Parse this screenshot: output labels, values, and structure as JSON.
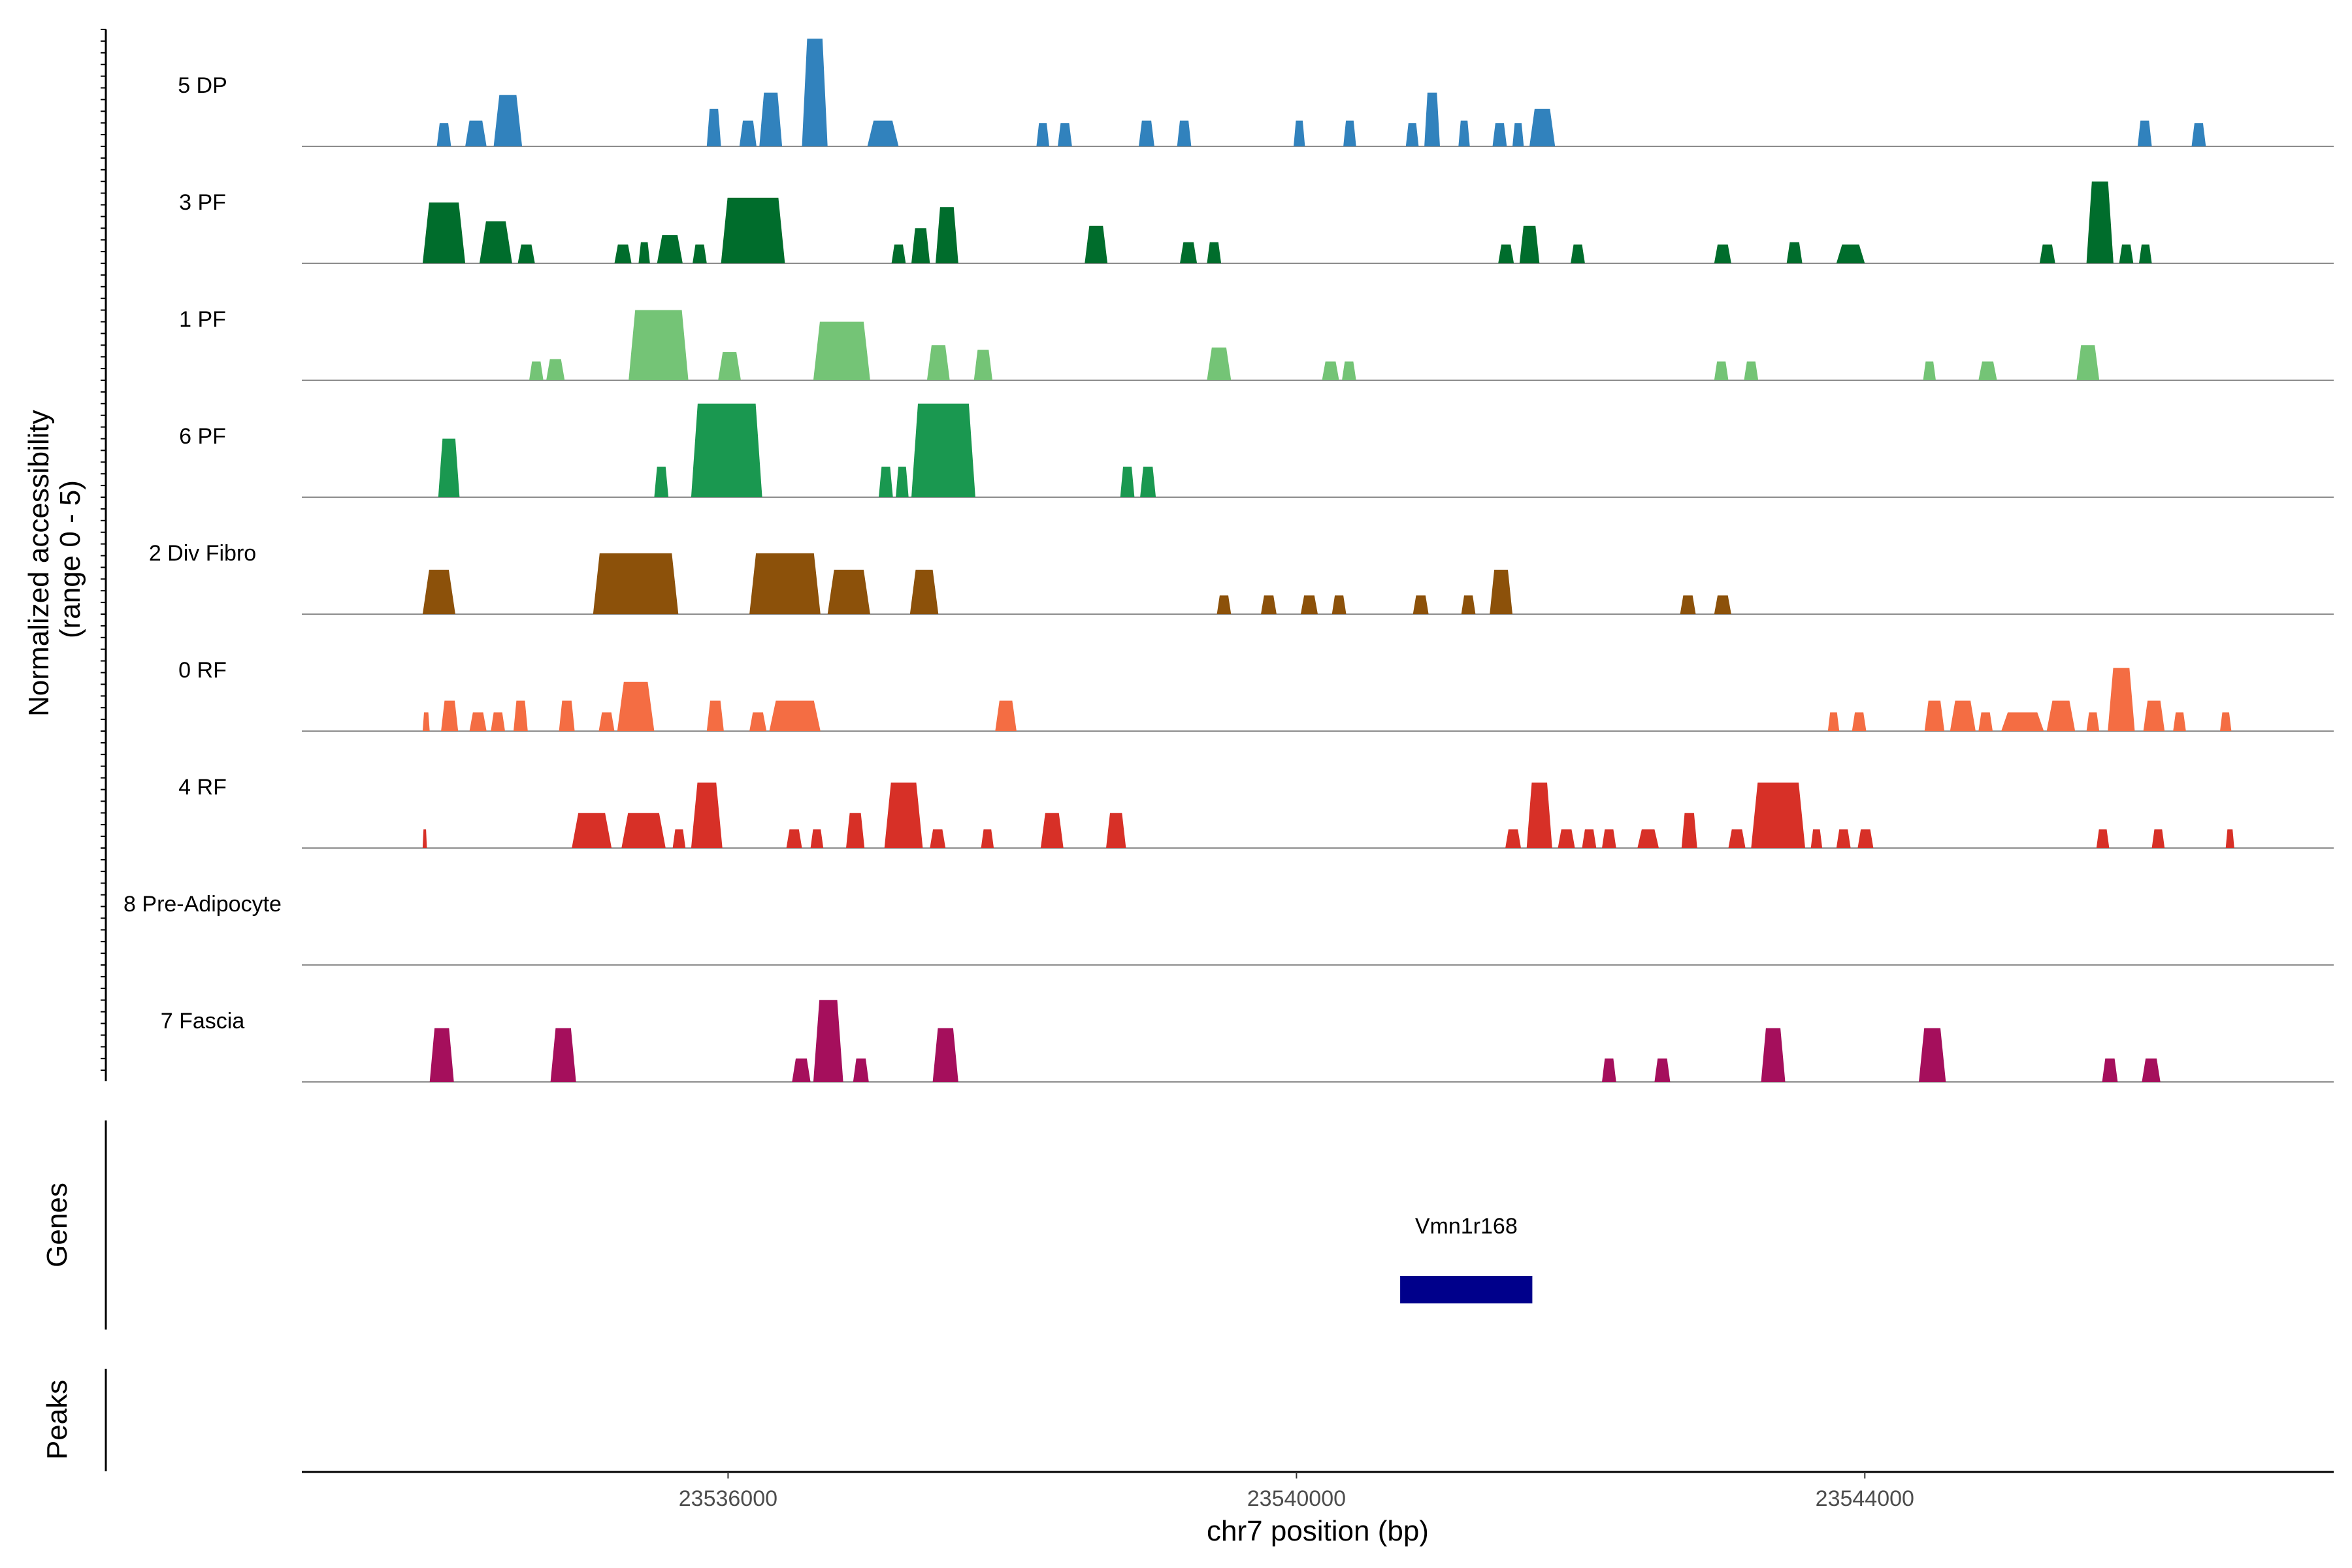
{
  "chart_data": {
    "type": "area",
    "title": "",
    "region": "chr7",
    "xlabel": "chr7 position (bp)",
    "ylabel_line1": "Normalized accessibility",
    "ylabel_line2": "(range 0 - 5)",
    "xlim": [
      23533000,
      23547300
    ],
    "ylim": [
      0,
      5
    ],
    "x_ticks": [
      {
        "value": 23536000,
        "label": "23536000"
      },
      {
        "value": 23540000,
        "label": "23540000"
      },
      {
        "value": 23544000,
        "label": "23544000"
      }
    ],
    "panel_labels": {
      "genes": "Genes",
      "peaks": "Peaks"
    },
    "genes": [
      {
        "name": "Vmn1r168",
        "start": 23540730,
        "end": 23541660,
        "color": "#00008b"
      }
    ],
    "series": [
      {
        "name": "5 DP",
        "color": "#3182bd",
        "peaks": [
          [
            23533950,
            23534050,
            1.0
          ],
          [
            23534150,
            23534300,
            1.1
          ],
          [
            23534350,
            23534550,
            2.2
          ],
          [
            23535850,
            23535950,
            1.6
          ],
          [
            23536080,
            23536200,
            1.1
          ],
          [
            23536220,
            23536380,
            2.3
          ],
          [
            23536520,
            23536700,
            4.6
          ],
          [
            23536980,
            23537200,
            1.1
          ],
          [
            23538170,
            23538260,
            1.0
          ],
          [
            23538320,
            23538420,
            1.0
          ],
          [
            23538890,
            23539000,
            1.1
          ],
          [
            23539160,
            23539260,
            1.1
          ],
          [
            23539980,
            23540060,
            1.1
          ],
          [
            23540330,
            23540420,
            1.1
          ],
          [
            23540770,
            23540860,
            1.0
          ],
          [
            23540900,
            23541010,
            2.3
          ],
          [
            23541140,
            23541220,
            1.1
          ],
          [
            23541380,
            23541480,
            1.0
          ],
          [
            23541520,
            23541600,
            1.0
          ],
          [
            23541640,
            23541820,
            1.6
          ],
          [
            23545920,
            23546020,
            1.1
          ],
          [
            23546300,
            23546400,
            1.0
          ]
        ]
      },
      {
        "name": "3 PF",
        "color": "#006d2c",
        "peaks": [
          [
            23533850,
            23534150,
            2.6
          ],
          [
            23534250,
            23534480,
            1.8
          ],
          [
            23534520,
            23534640,
            0.8
          ],
          [
            23535200,
            23535320,
            0.8
          ],
          [
            23535370,
            23535450,
            0.9
          ],
          [
            23535500,
            23535680,
            1.2
          ],
          [
            23535750,
            23535850,
            0.8
          ],
          [
            23535950,
            23536400,
            2.8
          ],
          [
            23537150,
            23537250,
            0.8
          ],
          [
            23537290,
            23537420,
            1.5
          ],
          [
            23537460,
            23537620,
            2.4
          ],
          [
            23538510,
            23538670,
            1.6
          ],
          [
            23539180,
            23539300,
            0.9
          ],
          [
            23539370,
            23539470,
            0.9
          ],
          [
            23541420,
            23541530,
            0.8
          ],
          [
            23541570,
            23541710,
            1.6
          ],
          [
            23541930,
            23542030,
            0.8
          ],
          [
            23542940,
            23543060,
            0.8
          ],
          [
            23543450,
            23543560,
            0.9
          ],
          [
            23543800,
            23544000,
            0.8
          ],
          [
            23545230,
            23545340,
            0.8
          ],
          [
            23545560,
            23545750,
            3.5
          ],
          [
            23545790,
            23545890,
            0.8
          ],
          [
            23545930,
            23546020,
            0.8
          ]
        ]
      },
      {
        "name": "1 PF",
        "color": "#74c476",
        "peaks": [
          [
            23534600,
            23534700,
            0.8
          ],
          [
            23534720,
            23534850,
            0.9
          ],
          [
            23535300,
            23535720,
            3.0
          ],
          [
            23535930,
            23536090,
            1.2
          ],
          [
            23536600,
            23537000,
            2.5
          ],
          [
            23537400,
            23537560,
            1.5
          ],
          [
            23537730,
            23537860,
            1.3
          ],
          [
            23539370,
            23539540,
            1.4
          ],
          [
            23540180,
            23540300,
            0.8
          ],
          [
            23540320,
            23540420,
            0.8
          ],
          [
            23542940,
            23543040,
            0.8
          ],
          [
            23543150,
            23543250,
            0.8
          ],
          [
            23544410,
            23544500,
            0.8
          ],
          [
            23544800,
            23544930,
            0.8
          ],
          [
            23545490,
            23545650,
            1.5
          ]
        ]
      },
      {
        "name": "6 PF",
        "color": "#1a9850",
        "peaks": [
          [
            23533960,
            23534110,
            2.5
          ],
          [
            23535480,
            23535580,
            1.3
          ],
          [
            23535740,
            23536240,
            4.0
          ],
          [
            23537060,
            23537160,
            1.3
          ],
          [
            23537180,
            23537270,
            1.3
          ],
          [
            23537290,
            23537740,
            4.0
          ],
          [
            23538760,
            23538860,
            1.3
          ],
          [
            23538900,
            23539010,
            1.3
          ]
        ]
      },
      {
        "name": "2 Div Fibro",
        "color": "#8c510a",
        "peaks": [
          [
            23533850,
            23534080,
            1.9
          ],
          [
            23535050,
            23535650,
            2.6
          ],
          [
            23536150,
            23536650,
            2.6
          ],
          [
            23536700,
            23537000,
            1.9
          ],
          [
            23537280,
            23537480,
            1.9
          ],
          [
            23539440,
            23539540,
            0.8
          ],
          [
            23539750,
            23539860,
            0.8
          ],
          [
            23540030,
            23540150,
            0.8
          ],
          [
            23540250,
            23540350,
            0.8
          ],
          [
            23540820,
            23540930,
            0.8
          ],
          [
            23541160,
            23541260,
            0.8
          ],
          [
            23541360,
            23541520,
            1.9
          ],
          [
            23542700,
            23542810,
            0.8
          ],
          [
            23542940,
            23543060,
            0.8
          ]
        ]
      },
      {
        "name": "0 RF",
        "color": "#f46d43",
        "peaks": [
          [
            23533850,
            23533900,
            0.8
          ],
          [
            23533980,
            23534100,
            1.3
          ],
          [
            23534180,
            23534300,
            0.8
          ],
          [
            23534330,
            23534430,
            0.8
          ],
          [
            23534490,
            23534590,
            1.3
          ],
          [
            23534810,
            23534920,
            1.3
          ],
          [
            23535090,
            23535200,
            0.8
          ],
          [
            23535220,
            23535480,
            2.1
          ],
          [
            23535850,
            23535970,
            1.3
          ],
          [
            23536150,
            23536270,
            0.8
          ],
          [
            23536290,
            23536650,
            1.3
          ],
          [
            23537880,
            23538030,
            1.3
          ],
          [
            23543740,
            23543820,
            0.8
          ],
          [
            23543910,
            23544010,
            0.8
          ],
          [
            23544420,
            23544560,
            1.3
          ],
          [
            23544600,
            23544780,
            1.3
          ],
          [
            23544800,
            23544900,
            0.8
          ],
          [
            23544960,
            23545260,
            0.8
          ],
          [
            23545280,
            23545480,
            1.3
          ],
          [
            23545560,
            23545650,
            0.8
          ],
          [
            23545710,
            23545900,
            2.7
          ],
          [
            23545960,
            23546110,
            1.3
          ],
          [
            23546170,
            23546260,
            0.8
          ],
          [
            23546500,
            23546580,
            0.8
          ]
        ]
      },
      {
        "name": "4 RF",
        "color": "#d73027",
        "peaks": [
          [
            23533850,
            23533880,
            0.8
          ],
          [
            23534900,
            23535180,
            1.5
          ],
          [
            23535250,
            23535560,
            1.5
          ],
          [
            23535610,
            23535700,
            0.8
          ],
          [
            23535740,
            23535960,
            2.8
          ],
          [
            23536410,
            23536520,
            0.8
          ],
          [
            23536580,
            23536670,
            0.8
          ],
          [
            23536830,
            23536960,
            1.5
          ],
          [
            23537100,
            23537370,
            2.8
          ],
          [
            23537420,
            23537530,
            0.8
          ],
          [
            23537780,
            23537870,
            0.8
          ],
          [
            23538200,
            23538360,
            1.5
          ],
          [
            23538660,
            23538800,
            1.5
          ],
          [
            23541470,
            23541580,
            0.8
          ],
          [
            23541620,
            23541800,
            2.8
          ],
          [
            23541840,
            23541960,
            0.8
          ],
          [
            23542010,
            23542110,
            0.8
          ],
          [
            23542150,
            23542250,
            0.8
          ],
          [
            23542400,
            23542550,
            0.8
          ],
          [
            23542710,
            23542820,
            1.5
          ],
          [
            23543040,
            23543160,
            0.8
          ],
          [
            23543200,
            23543580,
            2.8
          ],
          [
            23543620,
            23543700,
            0.8
          ],
          [
            23543800,
            23543900,
            0.8
          ],
          [
            23543950,
            23544060,
            0.8
          ],
          [
            23545630,
            23545720,
            0.8
          ],
          [
            23546020,
            23546110,
            0.8
          ],
          [
            23546540,
            23546600,
            0.8
          ]
        ]
      },
      {
        "name": "8 Pre-Adipocyte",
        "color": "#7f7f7f",
        "peaks": []
      },
      {
        "name": "7 Fascia",
        "color": "#a50f5c",
        "peaks": [
          [
            23533900,
            23534070,
            2.3
          ],
          [
            23534750,
            23534930,
            2.3
          ],
          [
            23536450,
            23536580,
            1.0
          ],
          [
            23536600,
            23536810,
            3.5
          ],
          [
            23536880,
            23536990,
            1.0
          ],
          [
            23537440,
            23537620,
            2.3
          ],
          [
            23542150,
            23542250,
            1.0
          ],
          [
            23542520,
            23542630,
            1.0
          ],
          [
            23543270,
            23543440,
            2.3
          ],
          [
            23544380,
            23544570,
            2.3
          ],
          [
            23545670,
            23545780,
            1.0
          ],
          [
            23545950,
            23546080,
            1.0
          ]
        ]
      }
    ]
  }
}
